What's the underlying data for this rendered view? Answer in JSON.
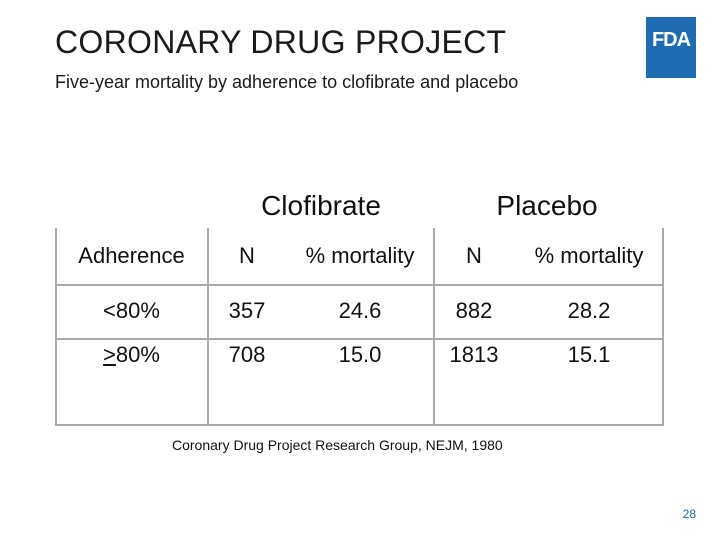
{
  "slide": {
    "title": "CORONARY DRUG PROJECT",
    "subtitle": "Five-year mortality by adherence to clofibrate and placebo",
    "logo_text": "FDA",
    "page_number": "28",
    "citation": "Coronary Drug Project Research Group, NEJM, 1980"
  },
  "table": {
    "groups": {
      "clofibrate": "Clofibrate",
      "placebo": "Placebo"
    },
    "headers": [
      "Adherence",
      "N",
      "% mortality",
      "N",
      "% mortality"
    ],
    "rows": [
      {
        "adherence": "<80%",
        "clof_n": "357",
        "clof_mort": "24.6",
        "plac_n": "882",
        "plac_mort": "28.2"
      },
      {
        "adherence_prefix": ">",
        "adherence_rest": "80%",
        "clof_n": "708",
        "clof_mort": "15.0",
        "plac_n": "1813",
        "plac_mort": "15.1"
      }
    ]
  },
  "colors": {
    "brand_blue": "#1f6cb3",
    "grid_line": "#aaaaaa"
  }
}
